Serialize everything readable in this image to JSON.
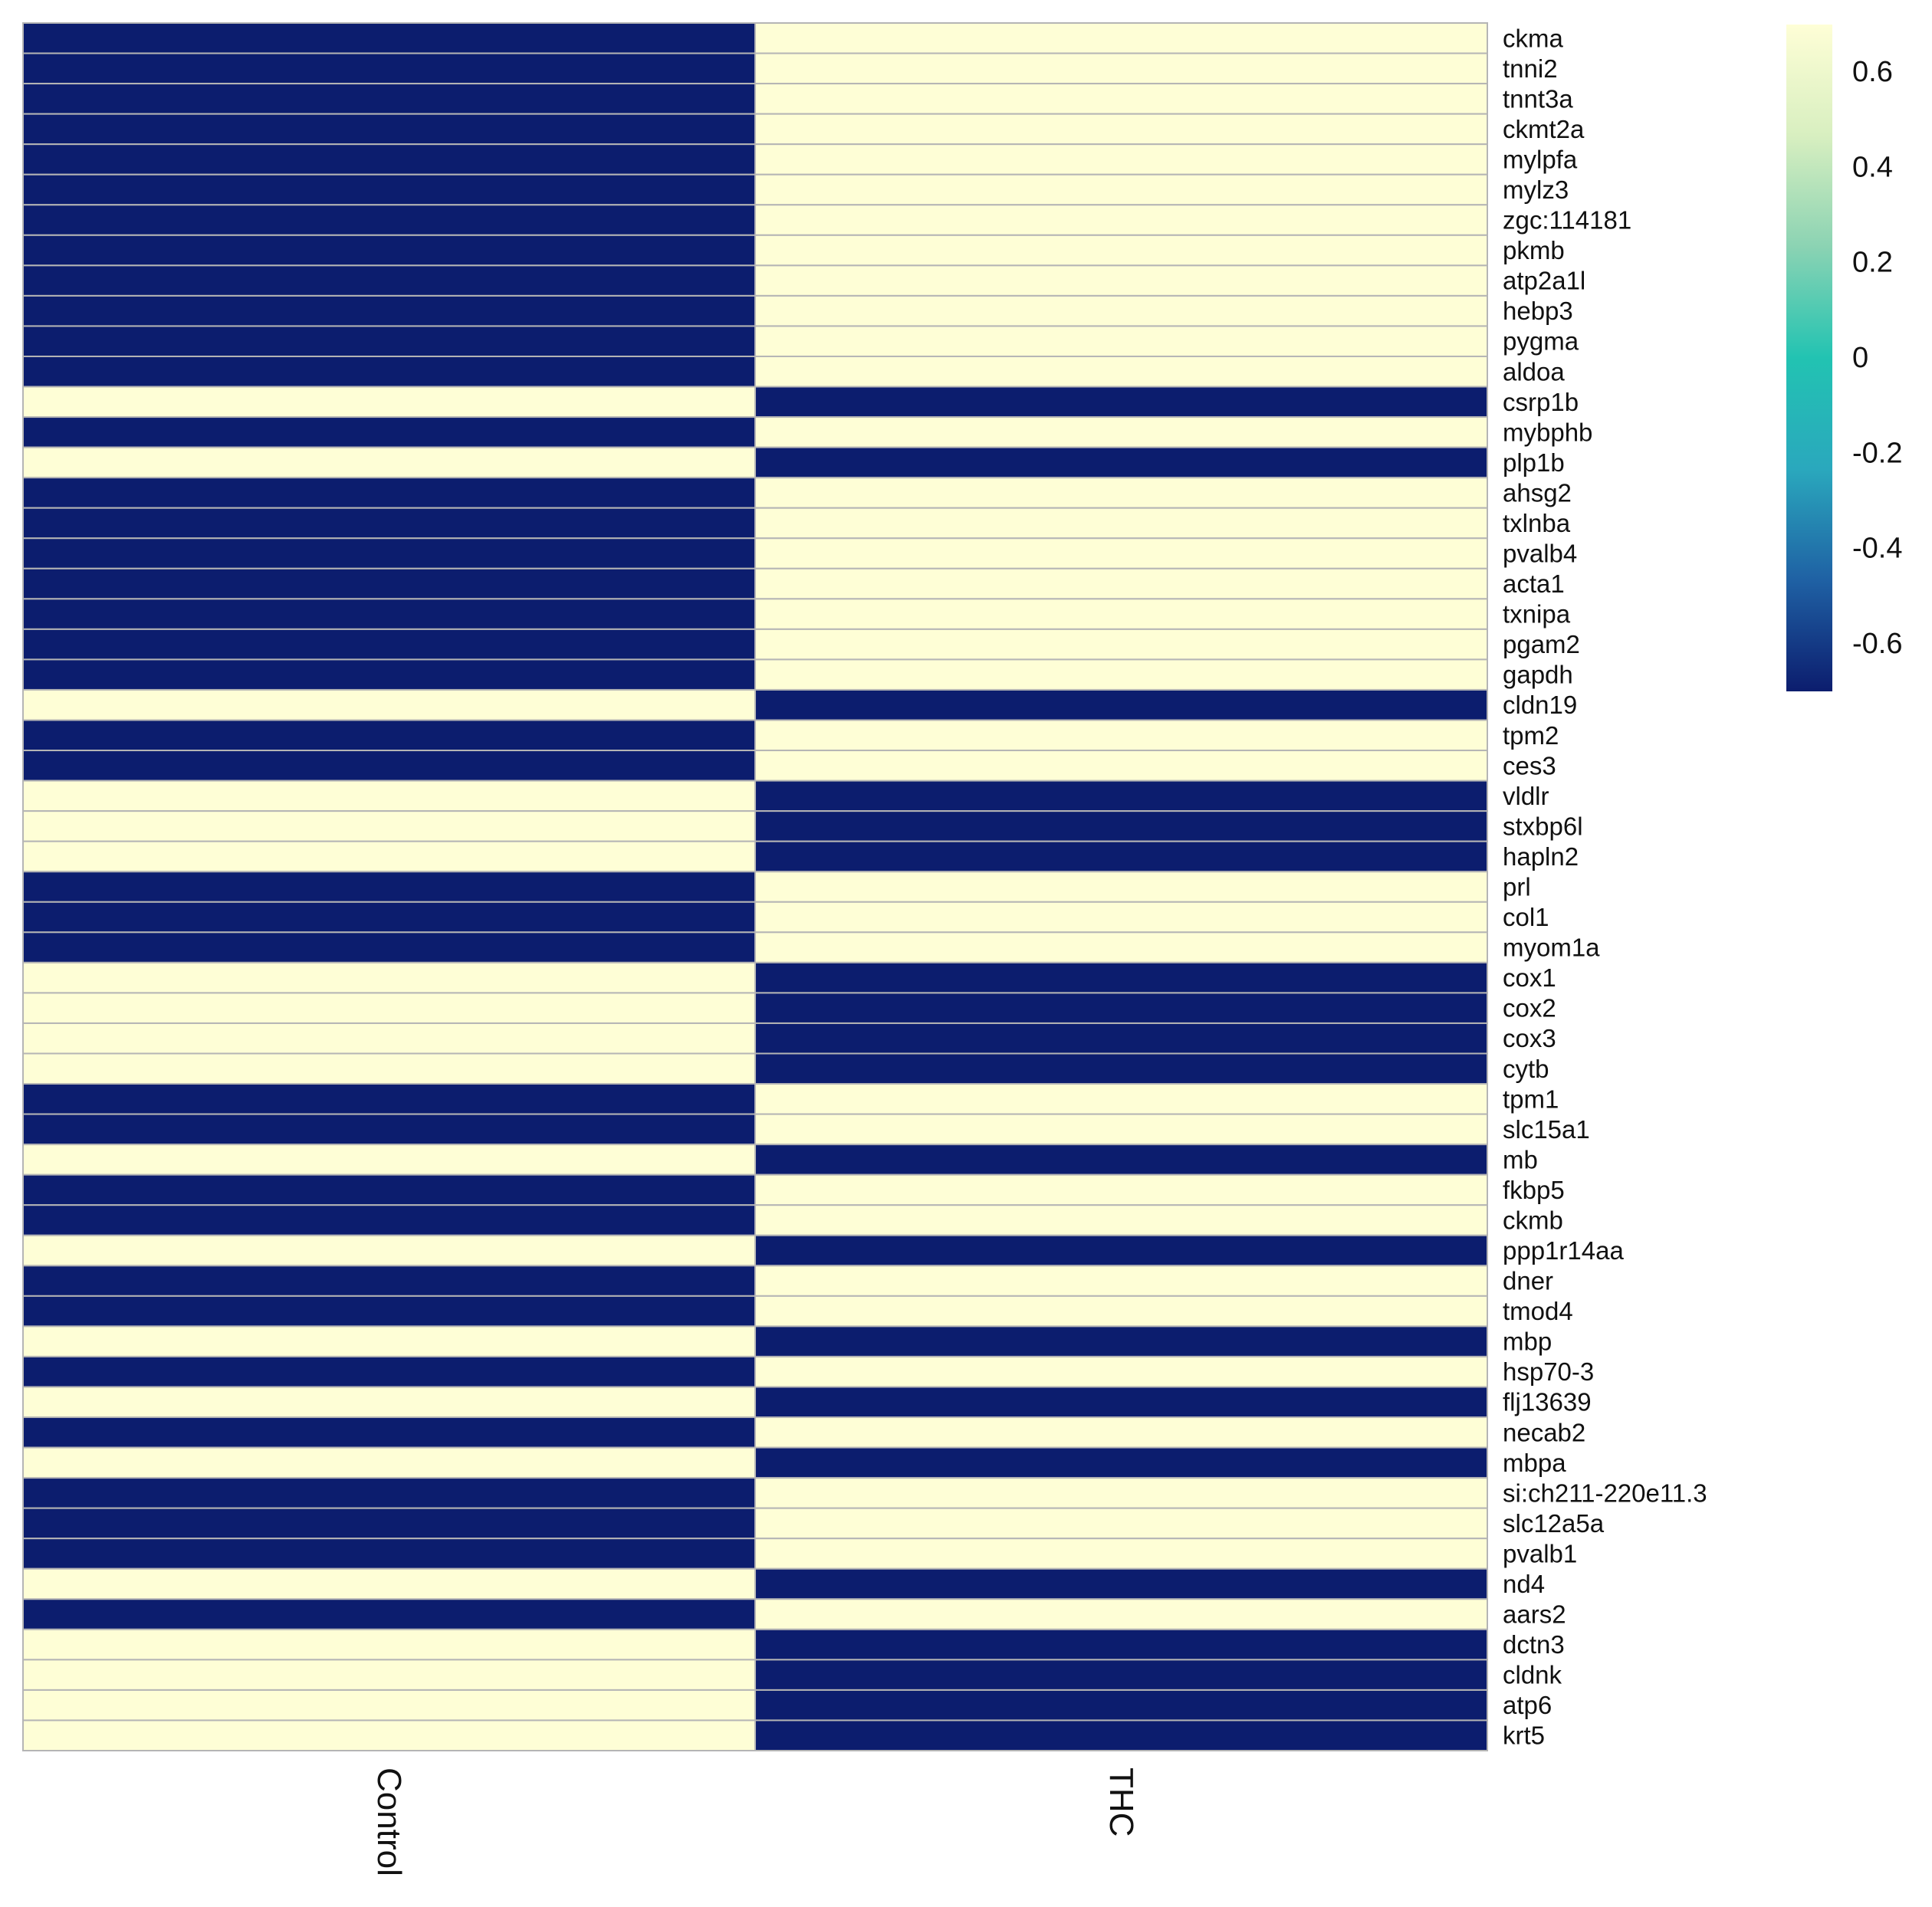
{
  "chart_data": {
    "type": "heatmap",
    "title": "",
    "columns": [
      "Control",
      "THC"
    ],
    "rows": [
      "ckma",
      "tnni2",
      "tnnt3a",
      "ckmt2a",
      "mylpfa",
      "mylz3",
      "zgc:114181",
      "pkmb",
      "atp2a1l",
      "hebp3",
      "pygma",
      "aldoa",
      "csrp1b",
      "mybphb",
      "plp1b",
      "ahsg2",
      "txlnba",
      "pvalb4",
      "acta1",
      "txnipa",
      "pgam2",
      "gapdh",
      "cldn19",
      "tpm2",
      "ces3",
      "vldlr",
      "stxbp6l",
      "hapln2",
      "prl",
      "col1",
      "myom1a",
      "cox1",
      "cox2",
      "cox3",
      "cytb",
      "tpm1",
      "slc15a1",
      "mb",
      "fkbp5",
      "ckmb",
      "ppp1r14aa",
      "dner",
      "tmod4",
      "mbp",
      "hsp70-3",
      "flj13639",
      "necab2",
      "mbpa",
      "si:ch211-220e11.3",
      "slc12a5a",
      "pvalb1",
      "nd4",
      "aars2",
      "dctn3",
      "cldnk",
      "atp6",
      "krt5"
    ],
    "values": [
      [
        -0.7,
        0.7
      ],
      [
        -0.7,
        0.7
      ],
      [
        -0.7,
        0.7
      ],
      [
        -0.7,
        0.7
      ],
      [
        -0.7,
        0.7
      ],
      [
        -0.7,
        0.7
      ],
      [
        -0.7,
        0.7
      ],
      [
        -0.7,
        0.7
      ],
      [
        -0.7,
        0.7
      ],
      [
        -0.7,
        0.7
      ],
      [
        -0.7,
        0.7
      ],
      [
        -0.7,
        0.7
      ],
      [
        0.7,
        -0.7
      ],
      [
        -0.7,
        0.7
      ],
      [
        0.7,
        -0.7
      ],
      [
        -0.7,
        0.7
      ],
      [
        -0.7,
        0.7
      ],
      [
        -0.7,
        0.7
      ],
      [
        -0.7,
        0.7
      ],
      [
        -0.7,
        0.7
      ],
      [
        -0.7,
        0.7
      ],
      [
        -0.7,
        0.7
      ],
      [
        0.7,
        -0.7
      ],
      [
        -0.7,
        0.7
      ],
      [
        -0.7,
        0.7
      ],
      [
        0.7,
        -0.7
      ],
      [
        0.7,
        -0.7
      ],
      [
        0.7,
        -0.7
      ],
      [
        -0.7,
        0.7
      ],
      [
        -0.7,
        0.7
      ],
      [
        -0.7,
        0.7
      ],
      [
        0.7,
        -0.7
      ],
      [
        0.7,
        -0.7
      ],
      [
        0.7,
        -0.7
      ],
      [
        0.7,
        -0.7
      ],
      [
        -0.7,
        0.7
      ],
      [
        -0.7,
        0.7
      ],
      [
        0.7,
        -0.7
      ],
      [
        -0.7,
        0.7
      ],
      [
        -0.7,
        0.7
      ],
      [
        0.7,
        -0.7
      ],
      [
        -0.7,
        0.7
      ],
      [
        -0.7,
        0.7
      ],
      [
        0.7,
        -0.7
      ],
      [
        -0.7,
        0.7
      ],
      [
        0.7,
        -0.7
      ],
      [
        -0.7,
        0.7
      ],
      [
        0.7,
        -0.7
      ],
      [
        -0.7,
        0.7
      ],
      [
        -0.7,
        0.7
      ],
      [
        -0.7,
        0.7
      ],
      [
        0.7,
        -0.7
      ],
      [
        -0.7,
        0.7
      ],
      [
        0.7,
        -0.7
      ],
      [
        0.7,
        -0.7
      ],
      [
        0.7,
        -0.7
      ],
      [
        0.7,
        -0.7
      ]
    ],
    "colorbar": {
      "range": [
        -0.7,
        0.7
      ],
      "ticks": [
        0.6,
        0.4,
        0.2,
        0,
        -0.2,
        -0.4,
        -0.6
      ],
      "tick_labels": [
        "0.6",
        "0.4",
        "0.2",
        "0",
        "-0.2",
        "-0.4",
        "-0.6"
      ],
      "colors": [
        "#0c1d6e",
        "#1f61a4",
        "#2aa8bd",
        "#22c3b2",
        "#8bd3b3",
        "#d8efc0",
        "#fefed6"
      ]
    },
    "legend_position": "top-right",
    "grid": true
  }
}
